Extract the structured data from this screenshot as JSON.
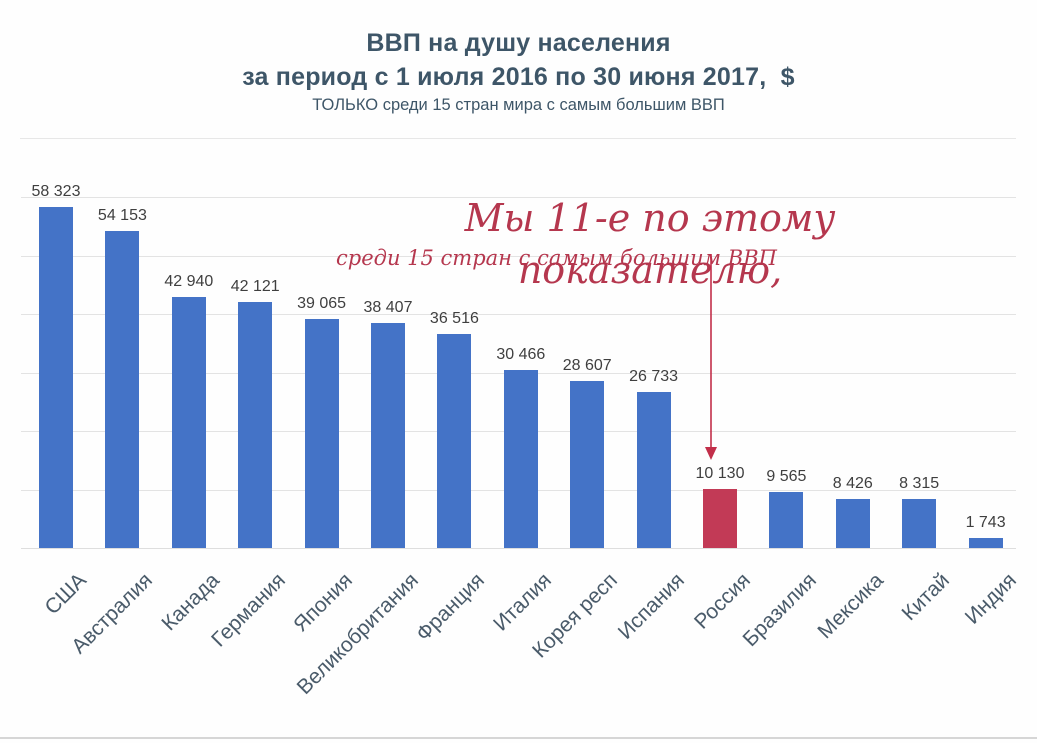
{
  "header": {
    "title_line1": "ВВП на душу населения",
    "title_line2": "за период с 1 июля 2016 по 30 июня 2017,  $",
    "subtitle": "ТОЛЬКО среди 15 стран мира с самым большим ВВП"
  },
  "annotation": {
    "line1": "Мы 11-е по этому показателю,",
    "line2": "среди 15 стран с самым большим ВВП",
    "arrow_icon": "arrow-down-icon",
    "arrow_target": "Россия"
  },
  "chart_data": {
    "type": "bar",
    "title": "ВВП на душу населения за период с 1 июля 2016 по 30 июня 2017, $",
    "subtitle": "ТОЛЬКО среди 15 стран мира с самым большим ВВП",
    "categories": [
      "США",
      "Австралия",
      "Канада",
      "Германия",
      "Япония",
      "Великобритания",
      "Франция",
      "Италия",
      "Корея респ",
      "Испания",
      "Россия",
      "Бразилия",
      "Мексика",
      "Китай",
      "Индия"
    ],
    "values": [
      58323,
      54153,
      42940,
      42121,
      39065,
      38407,
      36516,
      30466,
      28607,
      26733,
      10130,
      9565,
      8426,
      8315,
      1743
    ],
    "value_labels": [
      "58 323",
      "54 153",
      "42 940",
      "42 121",
      "39 065",
      "38 407",
      "36 516",
      "30 466",
      "28 607",
      "26 733",
      "10 130",
      "9 565",
      "8 426",
      "8 315",
      "1 743"
    ],
    "highlight_index": 10,
    "highlight_category": "Россия",
    "xlabel": "",
    "ylabel": "",
    "ylim": [
      0,
      60000
    ],
    "gridline_step": 10000,
    "grid": true,
    "legend": "none",
    "y_axis_labels_visible": false,
    "colors": {
      "bar": "#4473c7",
      "highlight": "#c23a56",
      "value_label": "#3f3f3f",
      "category_label": "#4a5b6a",
      "gridline": "#e3e3e3",
      "title": "#3e5668",
      "annotation": "#b5374e",
      "arrow": "#c22f4a"
    }
  }
}
